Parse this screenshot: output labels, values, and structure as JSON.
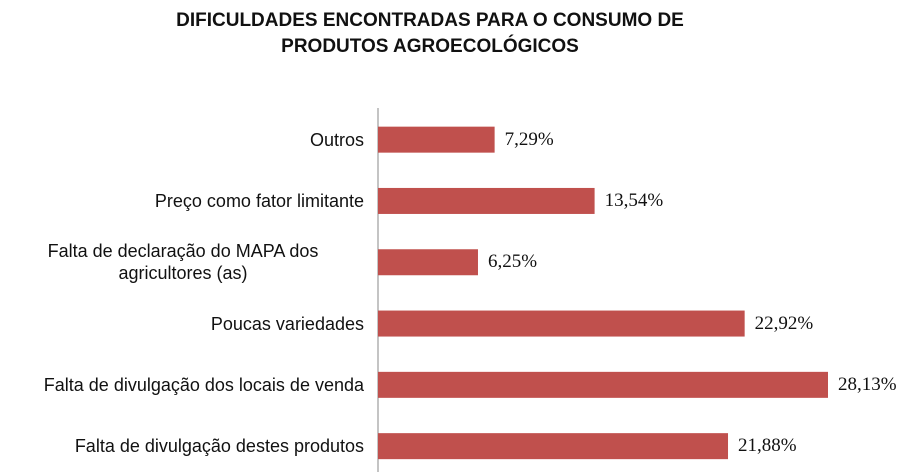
{
  "chart_data": {
    "type": "bar",
    "orientation": "horizontal",
    "title": "DIFICULDADES ENCONTRADAS PARA O CONSUMO DE PRODUTOS AGROECOLÓGICOS",
    "categories": [
      "Outros",
      "Preço como fator limitante",
      "Falta de declaração do MAPA dos agricultores (as)",
      "Poucas variedades",
      "Falta de divulgação dos locais de venda",
      "Falta de divulgação destes produtos"
    ],
    "values": [
      7.29,
      13.54,
      6.25,
      22.92,
      28.13,
      21.88
    ],
    "value_labels": [
      "7,29%",
      "13,54%",
      "6,25%",
      "22,92%",
      "28,13%",
      "21,88%"
    ],
    "color": "#c0504d"
  }
}
